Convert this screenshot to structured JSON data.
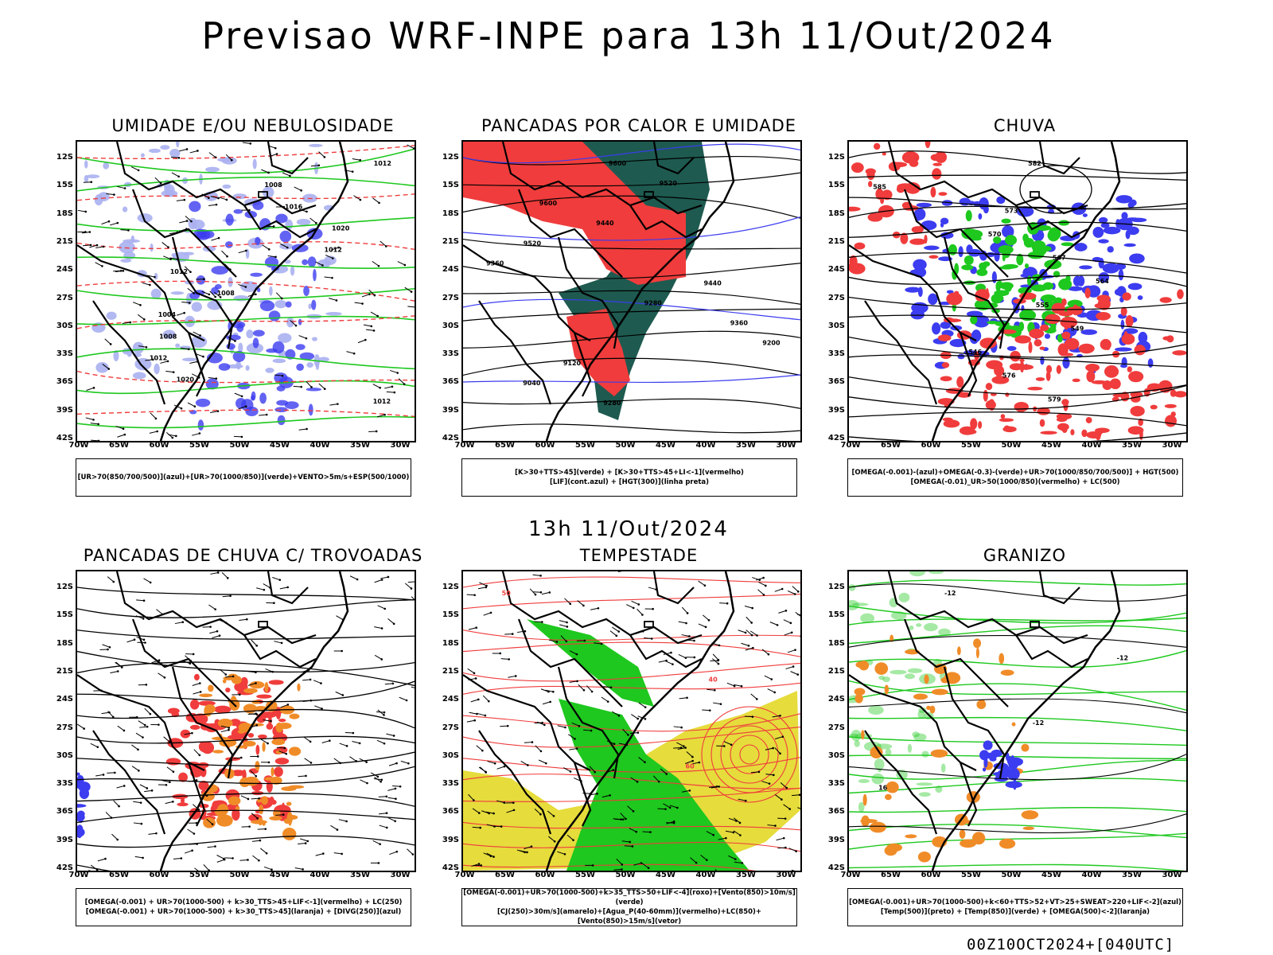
{
  "title": "Previsao WRF-INPE  para 13h 11/Out/2024",
  "mid_title": "13h 11/Out/2024",
  "footer": "00Z10OCT2024+[040UTC]",
  "lat_ticks": [
    "12S",
    "15S",
    "18S",
    "21S",
    "24S",
    "27S",
    "30S",
    "33S",
    "36S",
    "39S",
    "42S"
  ],
  "lon_ticks": [
    "70W",
    "65W",
    "60W",
    "55W",
    "50W",
    "45W",
    "40W",
    "35W",
    "30W"
  ],
  "colors": {
    "blue": "#3c3cf0",
    "lightblue": "#aab0f0",
    "green": "#1ec81e",
    "red": "#f03c3c",
    "darkgreen": "#1e5a50",
    "yellow": "#e6dc3c",
    "orange": "#f08c28"
  },
  "panels": [
    {
      "title": "UMIDADE E/OU NEBULOSIDADE",
      "legend": [
        "[UR>70(850/700/500)](azul)+[UR>70(1000/850)](verde)+VENTO>5m/s+ESP(500/1000)"
      ],
      "contour_labels": [
        "1012",
        "1008",
        "1016",
        "1020",
        "1012",
        "1012",
        "1008",
        "1004",
        "1008",
        "1012",
        "1020",
        "1012"
      ]
    },
    {
      "title": "PANCADAS POR CALOR E UMIDADE",
      "legend": [
        "[K>30+TTS>45](verde) + [K>30+TTS>45+LI<-1](vermelho)",
        "[LIF](cont.azul) + [HGT(300)](linha preta)"
      ],
      "contour_labels": [
        "9600",
        "9520",
        "9600",
        "9440",
        "9520",
        "9360",
        "9440",
        "9280",
        "9360",
        "9200",
        "9120",
        "9040",
        "9280"
      ]
    },
    {
      "title": "CHUVA",
      "legend": [
        "[OMEGA(-0.001)-(azul)+OMEGA(-0.3)-(verde)+UR>70(1000/850/700/500)] + HGT(500)",
        "[OMEGA(-0.01)_UR>50(1000/850)(vermelho) + LC(500)"
      ],
      "contour_labels": [
        "582",
        "585",
        "573",
        "570",
        "567",
        "564",
        "555",
        "549",
        "546",
        "576",
        "579"
      ]
    },
    {
      "title": "PANCADAS DE CHUVA C/ TROVOADAS",
      "legend": [
        "[OMEGA(-0.001) + UR>70(1000-500) + k>30_TTS>45+LIF<-1](vermelho) + LC(250)",
        "[OMEGA(-0.001) + UR>70(1000-500) + k>30_TTS>45](laranja) + [DIVG(250)](azul)"
      ],
      "contour_labels": []
    },
    {
      "title": "TEMPESTADE",
      "legend": [
        "[OMEGA(-0.001)+UR>70(1000-500)+k>35_TTS>50+LIF<-4](roxo)+[Vento(850)>10m/s](verde)",
        "[CJ(250)>30m/s](amarelo)+[Agua_P(40-60mm)](vermelho)+LC(850)+[Vento(850)>15m/s](vetor)"
      ],
      "contour_labels": [
        "50",
        "40",
        "60"
      ]
    },
    {
      "title": "GRANIZO",
      "legend": [
        "[OMEGA(-0.001)+UR>70(1000-500)+k<60+TTS>52+VT>25+SWEAT>220+LIF<-2](azul)",
        "[Temp(500)](preto) + [Temp(850)](verde) + [OMEGA(500)<-2](laranja)"
      ],
      "contour_labels": [
        "-12",
        "-12",
        "-12",
        "16"
      ]
    }
  ]
}
